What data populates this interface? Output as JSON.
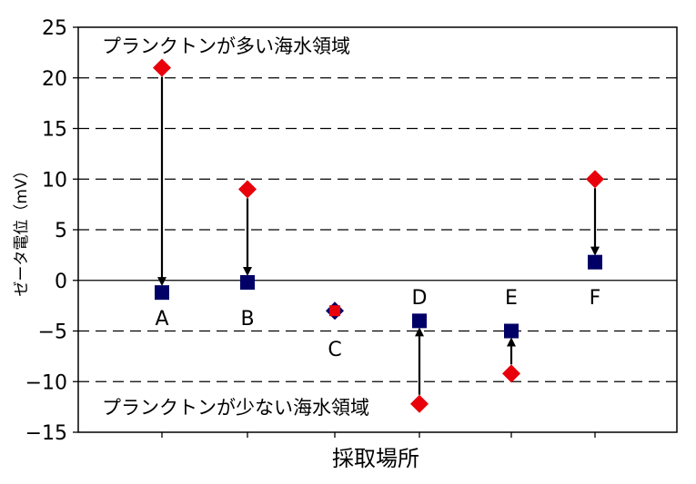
{
  "chart_data": {
    "type": "scatter",
    "title": "",
    "xlabel": "採取場所",
    "ylabel": "ゼータ電位（mV）",
    "ylim": [
      -15,
      25
    ],
    "yticks": [
      25,
      20,
      15,
      10,
      5,
      0,
      -5,
      -10,
      -15
    ],
    "ytick_labels": [
      "25",
      "20",
      "15",
      "10",
      "5",
      "0",
      "-5",
      "-10",
      "-15"
    ],
    "grid": "horizontal dashed",
    "legend": "none",
    "categories": [
      "A",
      "B",
      "C",
      "D",
      "E",
      "F"
    ],
    "series": [
      {
        "marker": "diamond",
        "color": "#e8000b",
        "values": [
          21.0,
          9.0,
          -3.0,
          -12.2,
          -9.2,
          10.0
        ]
      },
      {
        "marker": "square",
        "color": "#000066",
        "values": [
          -1.2,
          -0.2,
          -3.0,
          -4.0,
          -5.0,
          1.8
        ]
      }
    ],
    "arrows": [
      {
        "category": "A",
        "from": 21.0,
        "to": -1.2
      },
      {
        "category": "B",
        "from": 9.0,
        "to": -0.2
      },
      {
        "category": "D",
        "from": -12.2,
        "to": -4.0
      },
      {
        "category": "E",
        "from": -9.2,
        "to": -5.0
      },
      {
        "category": "F",
        "from": 10.0,
        "to": 1.8
      }
    ],
    "annotations": [
      {
        "text": "プランクトンが多い海水領域"
      },
      {
        "text": "プランクトンが少ない海水領域"
      }
    ]
  }
}
